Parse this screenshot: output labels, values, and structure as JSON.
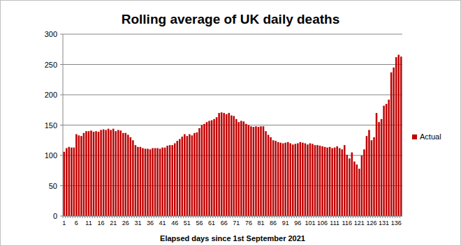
{
  "chart_data": {
    "type": "bar",
    "title": "Rolling average of UK daily deaths",
    "x_label": "Elapsed days since 1st September 2021",
    "categories": [
      "1",
      null,
      null,
      null,
      null,
      "6",
      null,
      null,
      null,
      null,
      "11",
      null,
      null,
      null,
      null,
      "16",
      null,
      null,
      null,
      null,
      "21",
      null,
      null,
      null,
      null,
      "26",
      null,
      null,
      null,
      null,
      "31",
      null,
      null,
      null,
      null,
      "36",
      null,
      null,
      null,
      null,
      "41",
      null,
      null,
      null,
      null,
      "46",
      null,
      null,
      null,
      null,
      "51",
      null,
      null,
      null,
      null,
      "56",
      null,
      null,
      null,
      null,
      "61",
      null,
      null,
      null,
      null,
      "66",
      null,
      null,
      null,
      null,
      "71",
      null,
      null,
      null,
      null,
      "76",
      null,
      null,
      null,
      null,
      "81",
      null,
      null,
      null,
      null,
      "86",
      null,
      null,
      null,
      null,
      "91",
      null,
      null,
      null,
      null,
      "96",
      null,
      null,
      null,
      null,
      "101",
      null,
      null,
      null,
      null,
      "106",
      null,
      null,
      null,
      null,
      "111",
      null,
      null,
      null,
      null,
      "116",
      null,
      null,
      null,
      null,
      "121",
      null,
      null,
      null,
      null,
      "126",
      null,
      null,
      null,
      null,
      "131",
      null,
      null,
      null,
      null,
      "136",
      null,
      null
    ],
    "series": [
      {
        "name": "Actual",
        "color": "#c00000",
        "values": [
          106,
          112,
          114,
          113,
          113,
          135,
          133,
          132,
          137,
          140,
          140,
          141,
          139,
          140,
          139,
          142,
          143,
          142,
          144,
          142,
          144,
          140,
          142,
          141,
          137,
          137,
          134,
          130,
          125,
          117,
          114,
          114,
          112,
          111,
          111,
          110,
          112,
          112,
          112,
          111,
          113,
          113,
          116,
          117,
          117,
          120,
          124,
          127,
          131,
          135,
          132,
          135,
          133,
          137,
          138,
          145,
          150,
          152,
          155,
          157,
          158,
          160,
          163,
          170,
          171,
          170,
          168,
          170,
          166,
          165,
          160,
          155,
          157,
          156,
          152,
          150,
          148,
          147,
          148,
          147,
          148,
          148,
          140,
          134,
          130,
          125,
          124,
          122,
          121,
          120,
          121,
          122,
          120,
          118,
          119,
          120,
          122,
          121,
          120,
          118,
          120,
          119,
          117,
          117,
          116,
          115,
          114,
          113,
          114,
          112,
          113,
          115,
          112,
          110,
          117,
          101,
          95,
          105,
          90,
          85,
          78,
          100,
          110,
          132,
          142,
          125,
          130,
          170,
          155,
          160,
          182,
          185,
          192,
          237,
          245,
          262,
          266,
          263
        ]
      }
    ],
    "ylim": [
      0,
      300
    ],
    "yticks": [
      0,
      50,
      100,
      150,
      200,
      250,
      300
    ],
    "grid": true,
    "legend": "right"
  }
}
